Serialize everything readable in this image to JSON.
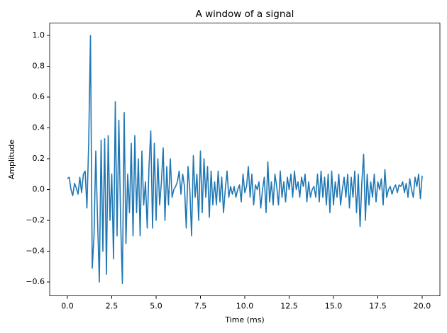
{
  "chart_data": {
    "type": "line",
    "title": "A window of a signal",
    "x_label": "Time (ms)",
    "y_label": "Amplitude",
    "color": "#1f77b4",
    "x": [
      0,
      0.1,
      0.2,
      0.3,
      0.4,
      0.5,
      0.6,
      0.7,
      0.8,
      0.9,
      1,
      1.1,
      1.2,
      1.3,
      1.4,
      1.5,
      1.6,
      1.7,
      1.8,
      1.9,
      2,
      2.1,
      2.2,
      2.3,
      2.4,
      2.5,
      2.6,
      2.7,
      2.8,
      2.9,
      3,
      3.1,
      3.2,
      3.3,
      3.4,
      3.5,
      3.6,
      3.7,
      3.8,
      3.9,
      4,
      4.1,
      4.2,
      4.3,
      4.4,
      4.5,
      4.6,
      4.7,
      4.8,
      4.9,
      5,
      5.1,
      5.2,
      5.3,
      5.4,
      5.5,
      5.6,
      5.7,
      5.8,
      5.9,
      6,
      6.1,
      6.2,
      6.3,
      6.4,
      6.5,
      6.6,
      6.7,
      6.8,
      6.9,
      7,
      7.1,
      7.2,
      7.3,
      7.4,
      7.5,
      7.6,
      7.7,
      7.8,
      7.9,
      8,
      8.1,
      8.2,
      8.3,
      8.4,
      8.5,
      8.6,
      8.7,
      8.8,
      8.9,
      9,
      9.1,
      9.2,
      9.3,
      9.4,
      9.5,
      9.6,
      9.7,
      9.8,
      9.9,
      10,
      10.1,
      10.2,
      10.3,
      10.4,
      10.5,
      10.6,
      10.7,
      10.8,
      10.9,
      11,
      11.1,
      11.2,
      11.3,
      11.4,
      11.5,
      11.6,
      11.7,
      11.8,
      11.9,
      12,
      12.1,
      12.2,
      12.3,
      12.4,
      12.5,
      12.6,
      12.7,
      12.8,
      12.9,
      13,
      13.1,
      13.2,
      13.3,
      13.4,
      13.5,
      13.6,
      13.7,
      13.8,
      13.9,
      14,
      14.1,
      14.2,
      14.3,
      14.4,
      14.5,
      14.6,
      14.7,
      14.8,
      14.9,
      15,
      15.1,
      15.2,
      15.3,
      15.4,
      15.5,
      15.6,
      15.7,
      15.8,
      15.9,
      16,
      16.1,
      16.2,
      16.3,
      16.4,
      16.5,
      16.6,
      16.7,
      16.8,
      16.9,
      17,
      17.1,
      17.2,
      17.3,
      17.4,
      17.5,
      17.6,
      17.7,
      17.8,
      17.9,
      18,
      18.1,
      18.2,
      18.3,
      18.4,
      18.5,
      18.6,
      18.7,
      18.8,
      18.9,
      19,
      19.1,
      19.2,
      19.3,
      19.4,
      19.5,
      19.6,
      19.7,
      19.8,
      19.9,
      20
    ],
    "values": [
      0.07,
      0.08,
      0.0,
      -0.04,
      0.04,
      0.01,
      -0.03,
      0.08,
      -0.02,
      0.1,
      0.12,
      -0.12,
      0.3,
      1.0,
      -0.51,
      -0.3,
      0.25,
      -0.2,
      -0.6,
      0.32,
      -0.4,
      0.33,
      -0.55,
      0.35,
      -0.2,
      0.1,
      -0.45,
      0.57,
      -0.3,
      0.45,
      -0.2,
      -0.61,
      0.5,
      -0.35,
      0.1,
      -0.15,
      0.3,
      -0.3,
      0.35,
      -0.15,
      0.2,
      -0.3,
      0.25,
      -0.1,
      0.05,
      -0.25,
      0.15,
      0.38,
      -0.25,
      0.3,
      -0.2,
      0.2,
      -0.1,
      0.05,
      0.27,
      -0.2,
      0.15,
      -0.1,
      0.2,
      -0.05,
      0.0,
      0.02,
      0.05,
      0.12,
      -0.03,
      0.1,
      0.02,
      -0.25,
      0.15,
      0.0,
      -0.3,
      0.22,
      -0.05,
      0.1,
      -0.2,
      0.25,
      -0.15,
      0.2,
      -0.05,
      0.15,
      -0.18,
      0.12,
      -0.1,
      0.05,
      -0.1,
      0.12,
      -0.08,
      0.08,
      -0.15,
      0.0,
      0.12,
      -0.05,
      0.02,
      -0.03,
      0.02,
      -0.05,
      0.0,
      0.03,
      -0.08,
      0.1,
      -0.02,
      0.02,
      0.15,
      -0.05,
      0.1,
      -0.1,
      0.03,
      0.0,
      0.05,
      -0.12,
      0.0,
      0.08,
      -0.15,
      0.18,
      -0.08,
      0.05,
      -0.1,
      0.1,
      0.02,
      -0.1,
      0.12,
      -0.05,
      0.05,
      -0.08,
      0.08,
      0.0,
      0.1,
      -0.05,
      0.12,
      0.0,
      0.05,
      -0.05,
      0.08,
      0.02,
      0.1,
      -0.08,
      0.05,
      -0.05,
      0.0,
      0.02,
      -0.05,
      0.1,
      -0.08,
      0.12,
      -0.05,
      0.08,
      -0.1,
      0.1,
      -0.15,
      0.12,
      -0.1,
      0.05,
      -0.05,
      0.1,
      -0.1,
      0.0,
      0.08,
      -0.05,
      0.1,
      -0.12,
      0.08,
      -0.05,
      0.12,
      -0.15,
      0.1,
      -0.24,
      0.05,
      0.23,
      -0.2,
      0.1,
      -0.1,
      0.05,
      -0.05,
      0.1,
      -0.08,
      0.05,
      0.0,
      0.07,
      -0.1,
      0.13,
      -0.05,
      0.0,
      0.02,
      -0.03,
      0.01,
      0.03,
      -0.02,
      0.03,
      0.02,
      0.05,
      -0.02,
      0.04,
      -0.05,
      0.07,
      0.0,
      -0.05,
      0.08,
      0.02,
      0.1,
      -0.06,
      0.09
    ],
    "xlim": [
      -1,
      21
    ],
    "xticks": [
      {
        "value": 0,
        "label": "0.0"
      },
      2.5,
      {
        "value": 5,
        "label": "5.0"
      },
      7.5,
      {
        "value": 10,
        "label": "10.0"
      },
      12.5,
      {
        "value": 15,
        "label": "15.0"
      },
      17.5,
      {
        "value": 20,
        "label": "20.0"
      }
    ],
    "ylim": [
      -0.69,
      1.08
    ],
    "yticks": [
      {
        "value": -0.6,
        "label": "−0.6"
      },
      {
        "value": -0.4,
        "label": "−0.4"
      },
      {
        "value": -0.2,
        "label": "−0.2"
      },
      {
        "value": 0,
        "label": "0.0"
      },
      0.2,
      0.4,
      0.6,
      0.8,
      {
        "value": 1,
        "label": "1.0"
      }
    ],
    "grid": false
  }
}
